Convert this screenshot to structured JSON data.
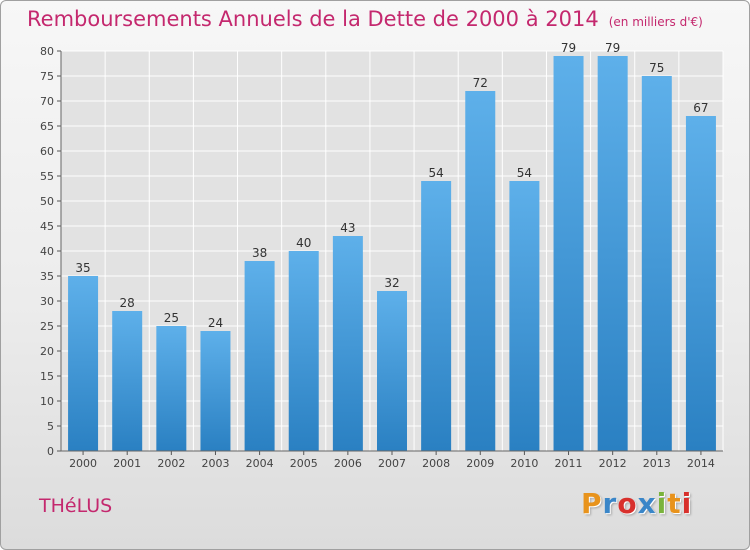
{
  "header": {
    "title": "Remboursements Annuels de la Dette de 2000 à 2014",
    "subtitle": "(en milliers d'€)"
  },
  "footer": {
    "commune": "THéLUS",
    "logo": "Proxiti"
  },
  "colors": {
    "title": "#c4286e",
    "bar_light": "#5eb0ea",
    "bar_dark": "#2a80c2",
    "grid": "#ffffff"
  },
  "chart_data": {
    "type": "bar",
    "title": "Remboursements Annuels de la Dette de 2000 à 2014",
    "subtitle": "(en milliers d'€)",
    "xlabel": "",
    "ylabel": "",
    "categories": [
      "2000",
      "2001",
      "2002",
      "2003",
      "2004",
      "2005",
      "2006",
      "2007",
      "2008",
      "2009",
      "2010",
      "2011",
      "2012",
      "2013",
      "2014"
    ],
    "values": [
      35,
      28,
      25,
      24,
      38,
      40,
      43,
      32,
      54,
      72,
      54,
      79,
      79,
      75,
      67
    ],
    "ylim": [
      0,
      80
    ],
    "yticks": [
      0,
      5,
      10,
      15,
      20,
      25,
      30,
      35,
      40,
      45,
      50,
      55,
      60,
      65,
      70,
      75,
      80
    ],
    "grid": true,
    "data_labels": true
  }
}
